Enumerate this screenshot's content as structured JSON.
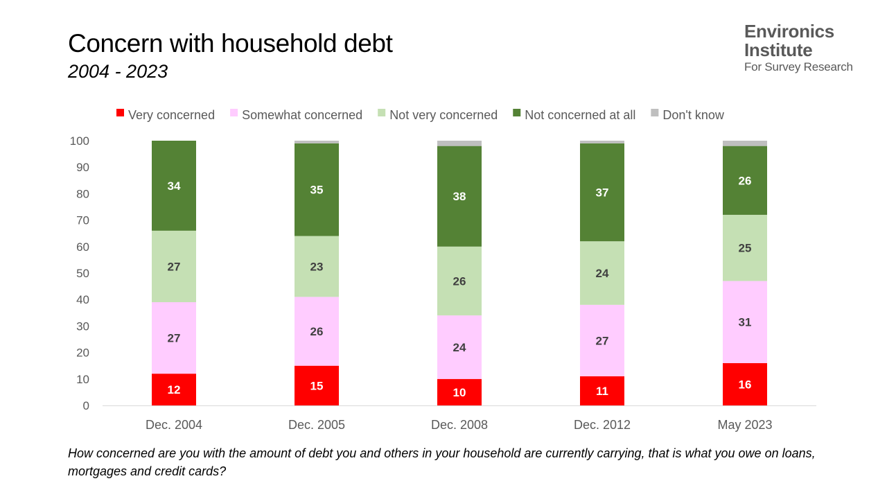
{
  "title": "Concern with household debt",
  "subtitle": "2004 - 2023",
  "logo": {
    "line1": "Environics",
    "line2": "Institute",
    "line3": "For Survey Research"
  },
  "question": "How concerned are you with the amount of debt you and others in your household are currently carrying, that is what you owe on loans, mortgages and credit cards?",
  "chart_data": {
    "type": "bar",
    "stacked": true,
    "title": "Concern with household debt",
    "subtitle": "2004 - 2023",
    "xlabel": "",
    "ylabel": "",
    "ylim": [
      0,
      100
    ],
    "yticks": [
      0,
      10,
      20,
      30,
      40,
      50,
      60,
      70,
      80,
      90,
      100
    ],
    "legend_position": "top",
    "grid": false,
    "categories": [
      "Dec. 2004",
      "Dec. 2005",
      "Dec. 2008",
      "Dec. 2012",
      "May 2023"
    ],
    "series": [
      {
        "name": "Very concerned",
        "color": "#ff0000",
        "label_color": "#ffffff",
        "values": [
          12,
          15,
          10,
          11,
          16
        ]
      },
      {
        "name": "Somewhat concerned",
        "color": "#ffccff",
        "label_color": "#404040",
        "values": [
          27,
          26,
          24,
          27,
          31
        ]
      },
      {
        "name": "Not very concerned",
        "color": "#c5e0b4",
        "label_color": "#404040",
        "values": [
          27,
          23,
          26,
          24,
          25
        ]
      },
      {
        "name": "Not concerned at all",
        "color": "#548235",
        "label_color": "#ffffff",
        "values": [
          34,
          35,
          38,
          37,
          26
        ]
      },
      {
        "name": "Don't know",
        "color": "#bfbfbf",
        "label_color": "#404040",
        "values": [
          0,
          1,
          2,
          1,
          2
        ],
        "show_labels": false
      }
    ]
  }
}
